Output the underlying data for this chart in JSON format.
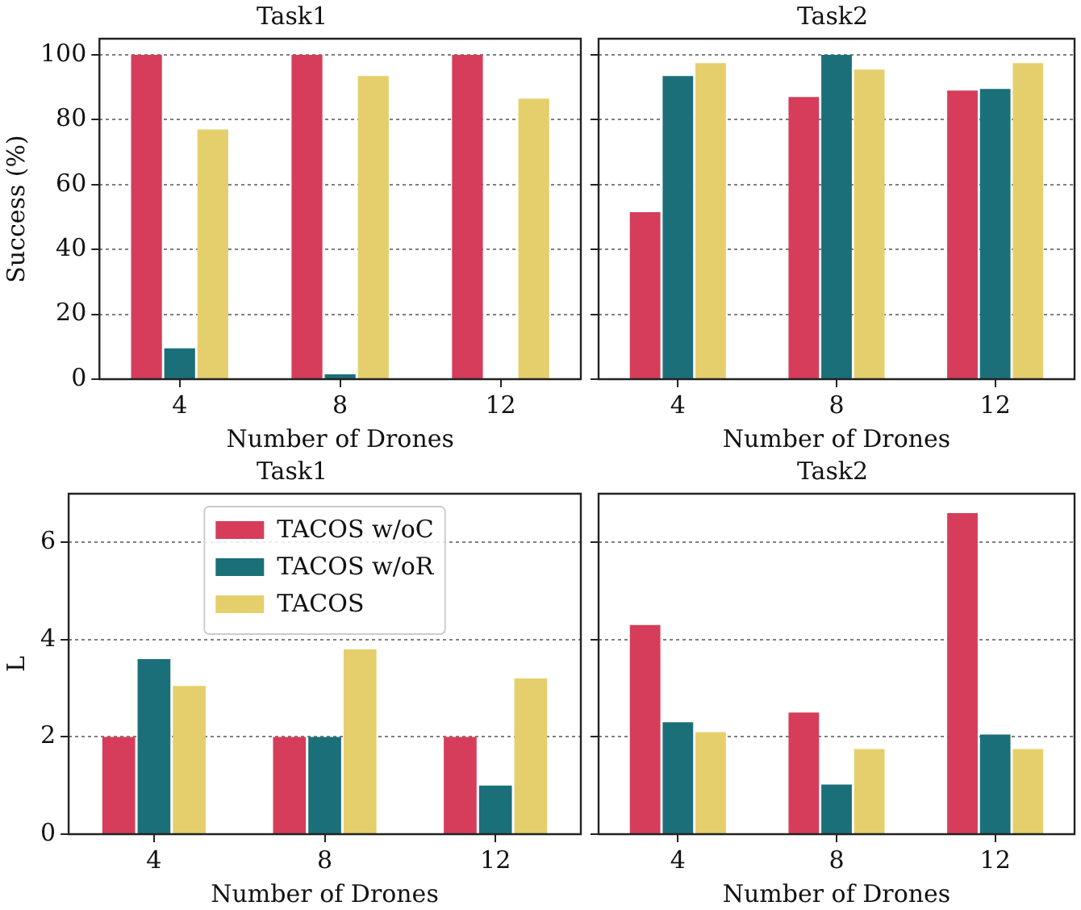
{
  "chart_data": [
    {
      "type": "bar",
      "title": "Task1",
      "xlabel": "Number of Drones",
      "ylabel": "Success (%)",
      "categories": [
        "4",
        "8",
        "12"
      ],
      "ylim": [
        0,
        105
      ],
      "yticks": [
        0,
        20,
        40,
        60,
        80,
        100
      ],
      "grid": "y",
      "series": [
        {
          "color": "#d63d5a",
          "values": [
            100,
            100,
            100
          ]
        },
        {
          "color": "#1b6f78",
          "values": [
            9.5,
            1.5,
            0
          ]
        },
        {
          "color": "#e5cf6c",
          "values": [
            77,
            93.5,
            86.5
          ]
        }
      ]
    },
    {
      "type": "bar",
      "title": "Task2",
      "xlabel": "Number of Drones",
      "categories": [
        "4",
        "8",
        "12"
      ],
      "ylim": [
        0,
        105
      ],
      "yticks": [
        0,
        20,
        40,
        60,
        80,
        100
      ],
      "grid": "y",
      "tick_labels": "x",
      "series": [
        {
          "color": "#d63d5a",
          "values": [
            51.5,
            87,
            89
          ]
        },
        {
          "color": "#1b6f78",
          "values": [
            93.5,
            100,
            89.5
          ]
        },
        {
          "color": "#e5cf6c",
          "values": [
            97.5,
            95.5,
            97.5
          ]
        }
      ]
    },
    {
      "type": "bar",
      "title": "Task1",
      "xlabel": "Number of Drones",
      "ylabel": "L",
      "categories": [
        "4",
        "8",
        "12"
      ],
      "ylim": [
        0,
        7
      ],
      "yticks": [
        0,
        2,
        4,
        6
      ],
      "grid": "y",
      "legend": "top",
      "series": [
        {
          "name": "TACOS w/oC",
          "color": "#d63d5a",
          "values": [
            2,
            2,
            2
          ]
        },
        {
          "name": "TACOS w/oR",
          "color": "#1b6f78",
          "values": [
            3.6,
            2,
            1
          ]
        },
        {
          "name": "TACOS",
          "color": "#e5cf6c",
          "values": [
            3.05,
            3.8,
            3.2
          ]
        }
      ]
    },
    {
      "type": "bar",
      "title": "Task2",
      "xlabel": "Number of Drones",
      "categories": [
        "4",
        "8",
        "12"
      ],
      "ylim": [
        0,
        7
      ],
      "yticks": [
        0,
        2,
        4,
        6
      ],
      "grid": "y",
      "tick_labels": "x",
      "series": [
        {
          "color": "#d63d5a",
          "values": [
            4.3,
            2.5,
            6.6
          ]
        },
        {
          "color": "#1b6f78",
          "values": [
            2.3,
            1.02,
            2.05
          ]
        },
        {
          "color": "#e5cf6c",
          "values": [
            2.1,
            1.75,
            1.75
          ]
        }
      ]
    }
  ]
}
